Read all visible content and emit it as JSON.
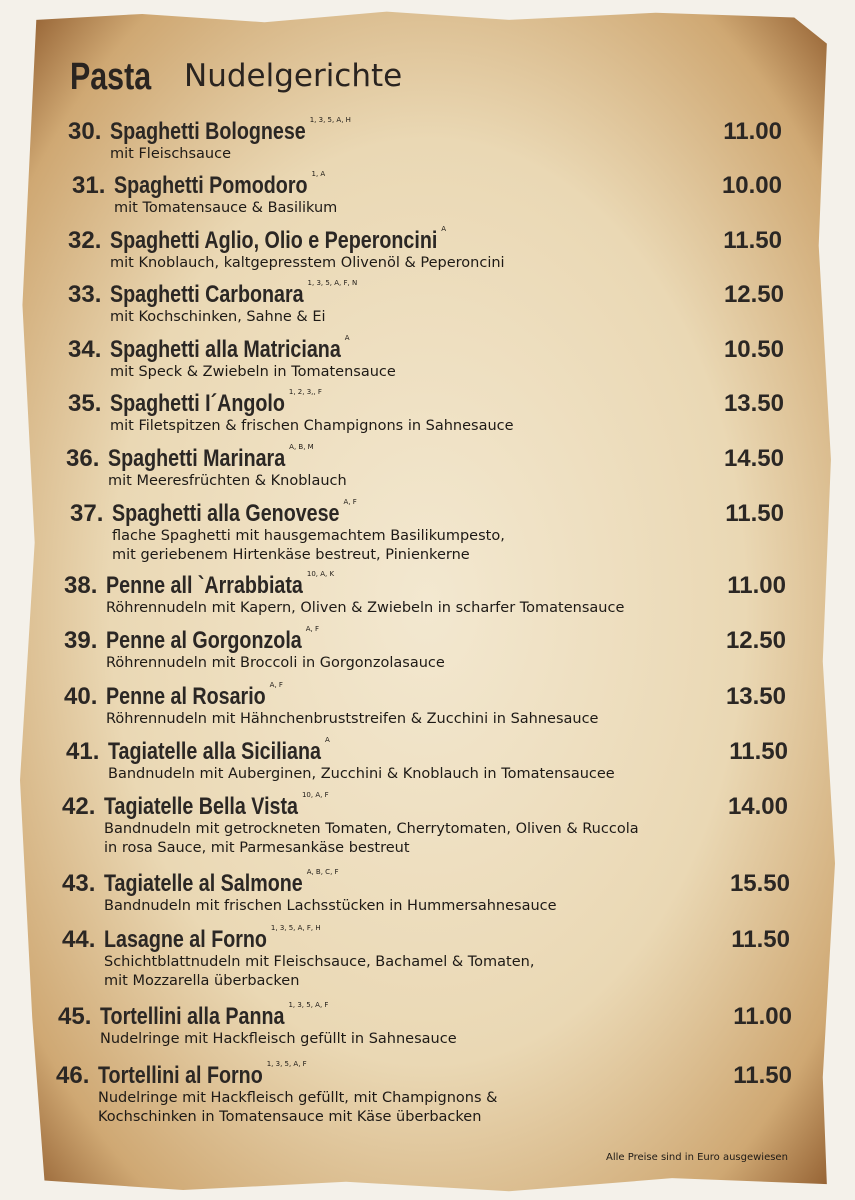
{
  "header": {
    "title": "Pasta",
    "subtitle": "Nudelgerichte"
  },
  "items": [
    {
      "number": "30.",
      "name": "Spaghetti Bolognese",
      "allergens": "1, 3, 5, A, H",
      "description": [
        "mit Fleischsauce"
      ],
      "price": "11.00"
    },
    {
      "number": "31.",
      "name": "Spaghetti Pomodoro",
      "allergens": "1, A",
      "description": [
        "mit Tomatensauce & Basilikum"
      ],
      "price": "10.00"
    },
    {
      "number": "32.",
      "name": "Spaghetti Aglio, Olio e Peperoncini",
      "allergens": "A",
      "description": [
        "mit Knoblauch, kaltgepresstem Olivenöl & Peperoncini"
      ],
      "price": "11.50"
    },
    {
      "number": "33.",
      "name": "Spaghetti Carbonara",
      "allergens": "1, 3, 5, A, F, N",
      "description": [
        "mit Kochschinken, Sahne & Ei"
      ],
      "price": "12.50"
    },
    {
      "number": "34.",
      "name": "Spaghetti alla Matriciana",
      "allergens": "A",
      "description": [
        "mit Speck & Zwiebeln in Tomatensauce"
      ],
      "price": "10.50"
    },
    {
      "number": "35.",
      "name": "Spaghetti I´Angolo",
      "allergens": "1, 2, 3,, F",
      "description": [
        "mit Filetspitzen & frischen Champignons in Sahnesauce"
      ],
      "price": "13.50"
    },
    {
      "number": "36.",
      "name": "Spaghetti Marinara",
      "allergens": "A, B, M",
      "description": [
        "mit Meeresfrüchten & Knoblauch"
      ],
      "price": "14.50"
    },
    {
      "number": "37.",
      "name": "Spaghetti alla Genovese",
      "allergens": "A, F",
      "description": [
        "flache Spaghetti mit hausgemachtem Basilikumpesto,",
        "mit geriebenem Hirtenkäse bestreut, Pinienkerne"
      ],
      "price": "11.50"
    },
    {
      "number": "38.",
      "name": "Penne all `Arrabbiata",
      "allergens": "10, A, K",
      "description": [
        "Röhrennudeln mit Kapern, Oliven & Zwiebeln in scharfer Tomatensauce"
      ],
      "price": "11.00"
    },
    {
      "number": "39.",
      "name": "Penne al Gorgonzola",
      "allergens": "A, F",
      "description": [
        "Röhrennudeln mit Broccoli in Gorgonzolasauce"
      ],
      "price": "12.50"
    },
    {
      "number": "40.",
      "name": "Penne al Rosario",
      "allergens": "A, F",
      "description": [
        "Röhrennudeln mit Hähnchenbruststreifen & Zucchini in Sahnesauce"
      ],
      "price": "13.50"
    },
    {
      "number": "41.",
      "name": "Tagiatelle alla Siciliana",
      "allergens": "A",
      "description": [
        "Bandnudeln mit Auberginen, Zucchini & Knoblauch in Tomatensaucee"
      ],
      "price": "11.50"
    },
    {
      "number": "42.",
      "name": "Tagiatelle Bella Vista",
      "allergens": "10, A, F",
      "description": [
        "Bandnudeln mit getrockneten Tomaten, Cherrytomaten, Oliven & Ruccola",
        "in rosa Sauce, mit Parmesankäse bestreut"
      ],
      "price": "14.00"
    },
    {
      "number": "43.",
      "name": "Tagiatelle al Salmone",
      "allergens": "A, B, C, F",
      "description": [
        "Bandnudeln mit frischen Lachsstücken in Hummersahnesauce"
      ],
      "price": "15.50"
    },
    {
      "number": "44.",
      "name": "Lasagne al Forno",
      "allergens": "1, 3, 5, A, F, H",
      "description": [
        "Schichtblattnudeln mit Fleischsauce, Bachamel & Tomaten,",
        "mit Mozzarella überbacken"
      ],
      "price": "11.50"
    },
    {
      "number": "45.",
      "name": "Tortellini alla Panna",
      "allergens": "1, 3, 5, A, F",
      "description": [
        "Nudelringe mit Hackfleisch gefüllt in Sahnesauce"
      ],
      "price": "11.00"
    },
    {
      "number": "46.",
      "name": "Tortellini al Forno",
      "allergens": "1, 3, 5, A, F",
      "description": [
        "Nudelringe mit Hackfleisch gefüllt, mit Champignons &",
        "Kochschinken in Tomatensauce mit Käse überbacken"
      ],
      "price": "11.50"
    }
  ],
  "footer": "Alle Preise sind in Euro ausgewiesen"
}
